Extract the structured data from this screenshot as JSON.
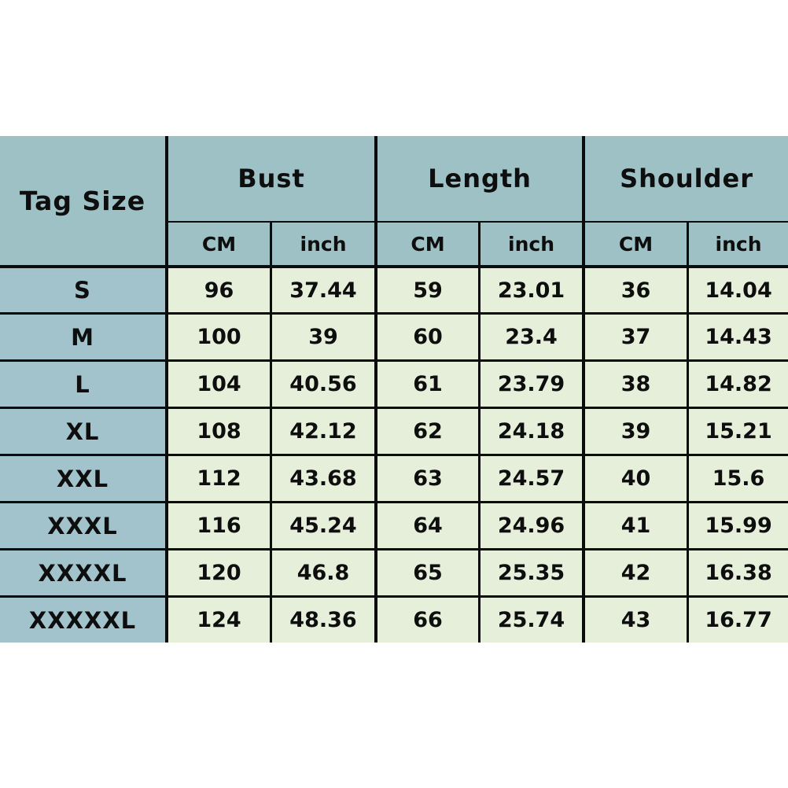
{
  "chart_data": {
    "type": "table",
    "corner_header": "Tag Size",
    "column_groups": [
      {
        "label": "Bust"
      },
      {
        "label": "Length"
      },
      {
        "label": "Shoulder"
      }
    ],
    "unit_headers": [
      "CM",
      "inch",
      "CM",
      "inch",
      "CM",
      "inch"
    ],
    "rows": [
      {
        "size": "S",
        "values": [
          96,
          37.44,
          59,
          23.01,
          36,
          14.04
        ]
      },
      {
        "size": "M",
        "values": [
          100,
          39,
          60,
          23.4,
          37,
          14.43
        ]
      },
      {
        "size": "L",
        "values": [
          104,
          40.56,
          61,
          23.79,
          38,
          14.82
        ]
      },
      {
        "size": "XL",
        "values": [
          108,
          42.12,
          62,
          24.18,
          39,
          15.21
        ]
      },
      {
        "size": "XXL",
        "values": [
          112,
          43.68,
          63,
          24.57,
          40,
          15.6
        ]
      },
      {
        "size": "XXXL",
        "values": [
          116,
          45.24,
          64,
          24.96,
          41,
          15.99
        ]
      },
      {
        "size": "XXXXL",
        "values": [
          120,
          46.8,
          65,
          25.35,
          42,
          16.38
        ]
      },
      {
        "size": "XXXXXL",
        "values": [
          124,
          48.36,
          66,
          25.74,
          43,
          16.77
        ]
      }
    ],
    "layout_hints": {
      "grid": "on",
      "no_outer_border": true
    }
  },
  "colors": {
    "header_fill": "#9ec1c6",
    "size_column_fill": "#a2c3cb",
    "value_fill": "#e5efda",
    "grid_line": "#0c0c0c",
    "background": "#ffffff",
    "text": "#0e0e0e"
  }
}
